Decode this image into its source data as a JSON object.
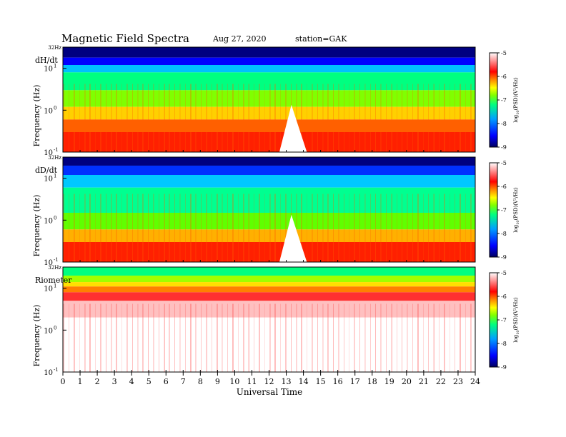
{
  "header": {
    "title": "Magnetic  Field  Spectra",
    "date": "Aug 27, 2020",
    "station": "station=GAK"
  },
  "chart_data": {
    "type": "heatmap",
    "xlabel": "Universal Time",
    "x_ticks": [
      "0",
      "1",
      "2",
      "3",
      "4",
      "5",
      "6",
      "7",
      "8",
      "9",
      "10",
      "11",
      "12",
      "13",
      "14",
      "15",
      "16",
      "17",
      "18",
      "19",
      "20",
      "21",
      "22",
      "23",
      "24"
    ],
    "xlim": [
      0,
      24
    ],
    "ylim_hz": [
      0.1,
      32
    ],
    "y_scale": "log",
    "colorscale": {
      "label": "log10(PSD)(V^2/Hz)",
      "label_text": "log",
      "label_sub": "10",
      "label_rest": "(PSD)(V²/Hz)",
      "range": [
        -9,
        -5
      ],
      "ticks": [
        "-5",
        "-6",
        "-7",
        "-8",
        "-9"
      ],
      "colors": [
        "#000070",
        "#0000ff",
        "#00b0ff",
        "#00ff80",
        "#80ff00",
        "#ffff00",
        "#ff8000",
        "#ff0000",
        "#ffffff"
      ]
    },
    "panels": [
      {
        "name": "dH/dt",
        "ylabel": "Frequency (Hz)",
        "y_top": "32Hz",
        "y_ticks": [
          {
            "base": "10",
            "exp": "1"
          },
          {
            "base": "10",
            "exp": "0"
          },
          {
            "base": "10",
            "exp": "-1"
          }
        ]
      },
      {
        "name": "dD/dt",
        "ylabel": "Frequency (Hz)",
        "y_top": "32Hz",
        "y_ticks": [
          {
            "base": "10",
            "exp": "1"
          },
          {
            "base": "10",
            "exp": "0"
          },
          {
            "base": "10",
            "exp": "-1"
          }
        ]
      },
      {
        "name": "Riometer",
        "ylabel": "Frequency (Hz)",
        "y_top": "32Hz",
        "y_ticks": [
          {
            "base": "10",
            "exp": "1"
          },
          {
            "base": "10",
            "exp": "0"
          },
          {
            "base": "10",
            "exp": "-1"
          }
        ]
      }
    ]
  }
}
